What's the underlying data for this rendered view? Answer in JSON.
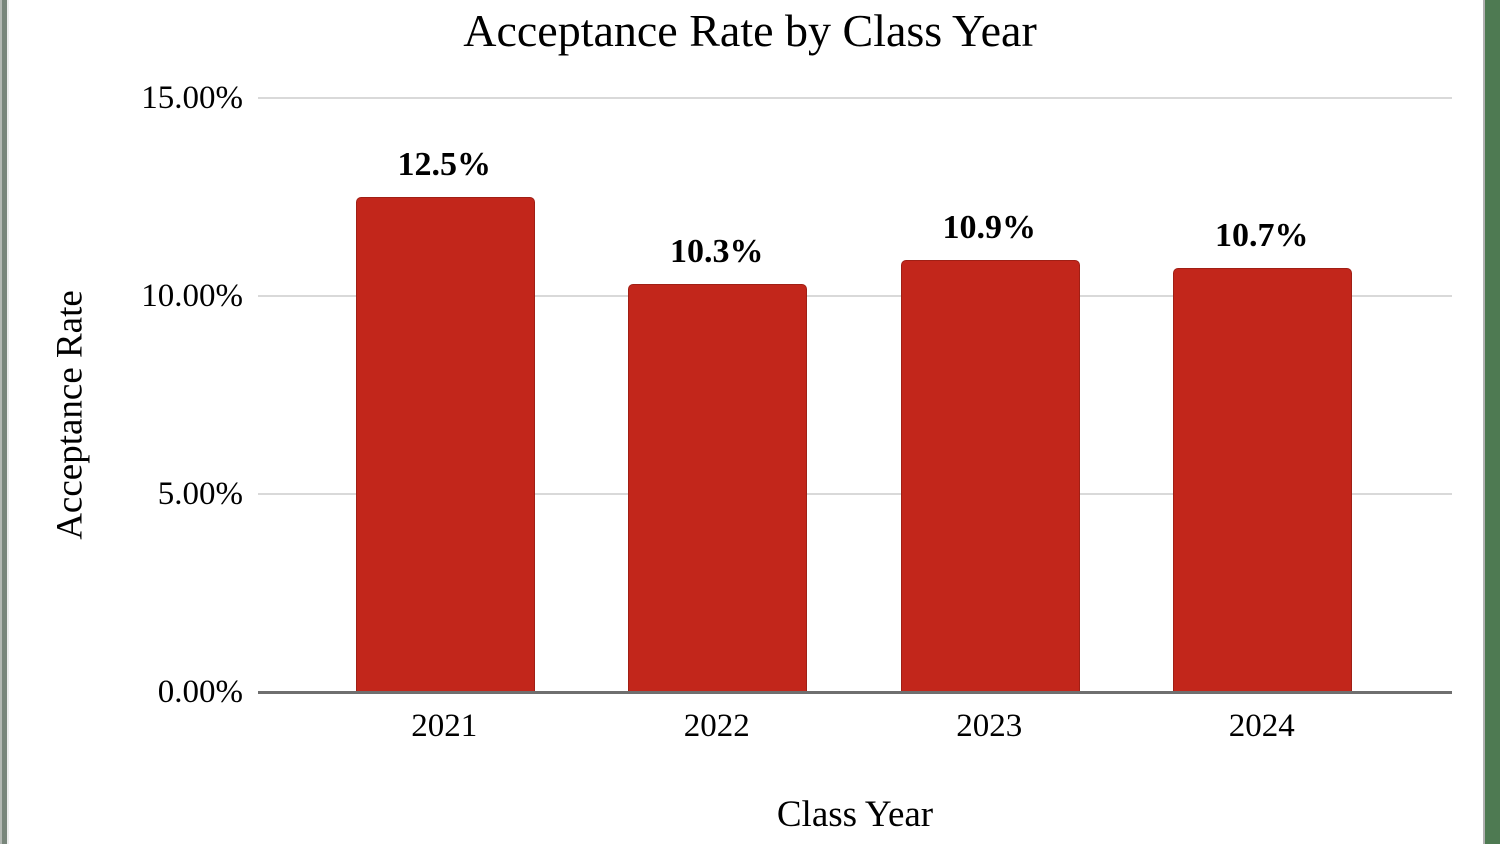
{
  "frame": {
    "left_strip_outer_color": "#b3b8b3",
    "left_strip_inner_color": "#79867b",
    "right_strip_gray_color": "#b0b0b0",
    "right_strip_green_color": "#4e7a52"
  },
  "chart_data": {
    "type": "bar",
    "title": "Acceptance Rate by Class Year",
    "xlabel": "Class Year",
    "ylabel": "Acceptance Rate",
    "categories": [
      "2021",
      "2022",
      "2023",
      "2024"
    ],
    "values": [
      12.5,
      10.3,
      10.9,
      10.7
    ],
    "value_labels": [
      "12.5%",
      "10.3%",
      "10.9%",
      "10.7%"
    ],
    "ylim": [
      0,
      15
    ],
    "yticks": [
      0,
      5,
      10,
      15
    ],
    "ytick_labels": [
      "0.00%",
      "5.00%",
      "10.00%",
      "15.00%"
    ],
    "grid": true,
    "legend": "none",
    "bar_color": "#c2261b",
    "bar_border_color": "#a01f15",
    "gridline_color": "#d9d9d9",
    "axis_line_color": "#6f6f6f",
    "text_color": "#000000"
  },
  "layout_note": ""
}
